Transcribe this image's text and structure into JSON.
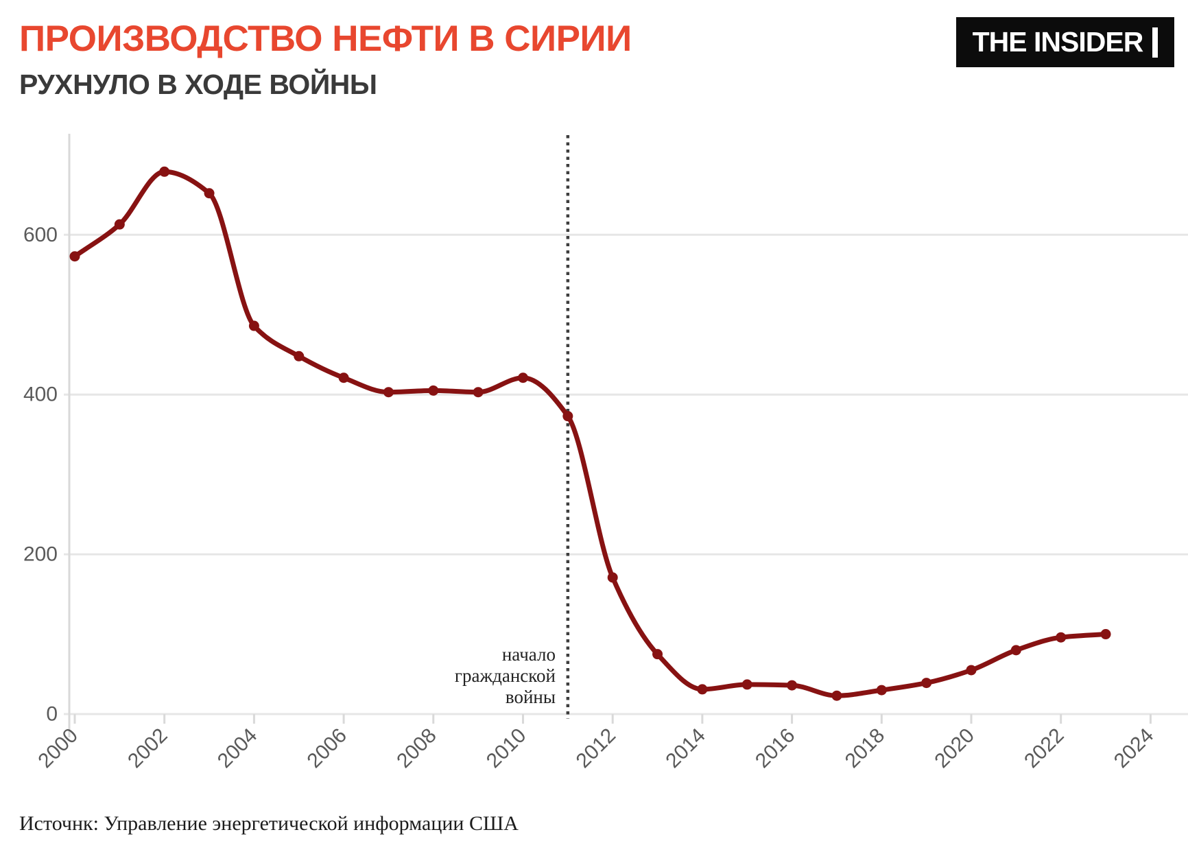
{
  "header": {
    "title": "ПРОИЗВОДСТВО НЕФТИ В СИРИИ",
    "subtitle": "РУХНУЛО В ХОДЕ ВОЙНЫ",
    "logo_text": "THE INSIDER"
  },
  "source": "Источнк: Управление энергетической информации США",
  "annotation": {
    "lines": [
      "начало",
      "гражданской",
      "войны"
    ],
    "year": 2011
  },
  "colors": {
    "line": "#871212",
    "title": "#e8472f",
    "subtitle": "#3a3a3a",
    "axis_label": "#5a5a5a",
    "gridline": "#e6e6e6",
    "tick": "#d9d9d9",
    "dotted_line": "#3e3e3e",
    "logo_bg": "#0c0c0c",
    "logo_text": "#ffffff",
    "annotation_text": "#222222"
  },
  "chart_data": {
    "type": "line",
    "title": "Производство нефти в Сирии",
    "x": [
      2000,
      2001,
      2002,
      2003,
      2004,
      2005,
      2006,
      2007,
      2008,
      2009,
      2010,
      2011,
      2012,
      2013,
      2014,
      2015,
      2016,
      2017,
      2018,
      2019,
      2020,
      2021,
      2022,
      2023
    ],
    "series": [
      {
        "name": "Производство нефти",
        "values": [
          573,
          613,
          679,
          652,
          486,
          448,
          421,
          403,
          405,
          403,
          421,
          373,
          171,
          75,
          31,
          37,
          36,
          23,
          30,
          39,
          55,
          80,
          96,
          100
        ]
      }
    ],
    "xlabel": "",
    "ylabel": "",
    "ylim": [
      0,
      720
    ],
    "xlim": [
      2000,
      2024
    ],
    "yticks": [
      0,
      200,
      400,
      600
    ],
    "xticks": [
      2000,
      2002,
      2004,
      2006,
      2008,
      2010,
      2012,
      2014,
      2016,
      2018,
      2020,
      2022,
      2024
    ],
    "grid": true,
    "legend": false,
    "marker": "circle",
    "smooth": true,
    "vline_year": 2011
  }
}
